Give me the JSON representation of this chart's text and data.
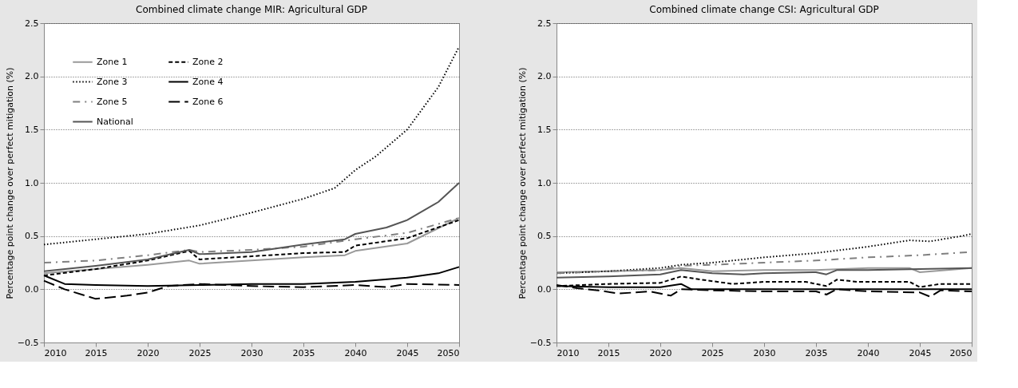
{
  "chart_data": [
    {
      "type": "line",
      "title": "Combined climate change MIR: Agricultural GDP",
      "ylabel": "Percentage point change over perfect mitigation (%)",
      "xlim": [
        2010,
        2050
      ],
      "ylim": [
        -0.5,
        2.5
      ],
      "xticks": [
        2010,
        2015,
        2020,
        2025,
        2030,
        2035,
        2040,
        2045,
        2050
      ],
      "yticks": [
        -0.5,
        {
          "value": 0,
          "label": "0.0"
        },
        0.5,
        {
          "value": 1,
          "label": "1.0"
        },
        1.5,
        {
          "value": 2,
          "label": "2.0"
        },
        2.5
      ],
      "grid": "y",
      "legend": "top left",
      "series": [
        {
          "name": "Zone 1",
          "color": "#999999",
          "line_style": "solid",
          "x": [
            2010,
            2015,
            2020,
            2024,
            2025,
            2030,
            2035,
            2039,
            2040,
            2045,
            2050
          ],
          "values": [
            0.15,
            0.19,
            0.23,
            0.27,
            0.24,
            0.27,
            0.3,
            0.32,
            0.36,
            0.43,
            0.67
          ]
        },
        {
          "name": "Zone 2",
          "color": "#000000",
          "line_style": "dashed",
          "x": [
            2010,
            2015,
            2020,
            2024,
            2025,
            2030,
            2035,
            2039,
            2040,
            2045,
            2050
          ],
          "values": [
            0.13,
            0.19,
            0.27,
            0.36,
            0.28,
            0.31,
            0.34,
            0.35,
            0.41,
            0.48,
            0.65
          ]
        },
        {
          "name": "Zone 3",
          "color": "#000000",
          "line_style": "dotted",
          "x": [
            2010,
            2015,
            2020,
            2025,
            2030,
            2035,
            2038,
            2040,
            2042,
            2045,
            2048,
            2050
          ],
          "values": [
            0.42,
            0.47,
            0.52,
            0.6,
            0.72,
            0.85,
            0.95,
            1.12,
            1.25,
            1.5,
            1.9,
            2.28
          ]
        },
        {
          "name": "Zone 4",
          "color": "#000000",
          "line_style": "solid",
          "x": [
            2010,
            2012,
            2015,
            2020,
            2025,
            2030,
            2035,
            2040,
            2045,
            2048,
            2050
          ],
          "values": [
            0.13,
            0.05,
            0.04,
            0.03,
            0.04,
            0.05,
            0.05,
            0.07,
            0.11,
            0.15,
            0.21
          ]
        },
        {
          "name": "Zone 5",
          "color": "#808080",
          "line_style": "dashdot",
          "x": [
            2010,
            2015,
            2020,
            2024,
            2025,
            2030,
            2035,
            2040,
            2045,
            2050
          ],
          "values": [
            0.25,
            0.27,
            0.32,
            0.37,
            0.35,
            0.37,
            0.4,
            0.47,
            0.53,
            0.67
          ]
        },
        {
          "name": "Zone 6",
          "color": "#000000",
          "line_style": "longdash",
          "x": [
            2010,
            2012,
            2015,
            2018,
            2020,
            2022,
            2025,
            2030,
            2035,
            2040,
            2043,
            2045,
            2050
          ],
          "values": [
            0.08,
            0.0,
            -0.09,
            -0.06,
            -0.03,
            0.03,
            0.05,
            0.03,
            0.02,
            0.04,
            0.02,
            0.05,
            0.04
          ]
        },
        {
          "name": "National",
          "color": "#555555",
          "line_style": "solid",
          "x": [
            2010,
            2015,
            2020,
            2024,
            2025,
            2030,
            2035,
            2039,
            2040,
            2043,
            2045,
            2048,
            2050
          ],
          "values": [
            0.17,
            0.22,
            0.28,
            0.37,
            0.33,
            0.35,
            0.42,
            0.47,
            0.52,
            0.58,
            0.65,
            0.82,
            1.0
          ]
        }
      ]
    },
    {
      "type": "line",
      "title": "Combined climate change CSI: Agricultural GDP",
      "ylabel": "Percentage point change over perfect mitigation (%)",
      "xlim": [
        2010,
        2050
      ],
      "ylim": [
        -0.5,
        2.5
      ],
      "xticks": [
        2010,
        2015,
        2020,
        2025,
        2030,
        2035,
        2040,
        2045,
        2050
      ],
      "yticks": [
        -0.5,
        {
          "value": 0,
          "label": "0.0"
        },
        0.5,
        {
          "value": 1,
          "label": "1.0"
        },
        1.5,
        {
          "value": 2,
          "label": "2.0"
        },
        2.5
      ],
      "grid": "y",
      "legend": "top left",
      "series": [
        {
          "name": "Zone 1",
          "color": "#999999",
          "line_style": "solid",
          "x": [
            2010,
            2020,
            2022,
            2025,
            2030,
            2035,
            2040,
            2044,
            2045,
            2050
          ],
          "values": [
            0.16,
            0.18,
            0.2,
            0.17,
            0.18,
            0.18,
            0.2,
            0.2,
            0.16,
            0.2
          ]
        },
        {
          "name": "Zone 2",
          "color": "#000000",
          "line_style": "dashed",
          "x": [
            2010,
            2015,
            2020,
            2022,
            2024,
            2027,
            2030,
            2034,
            2036,
            2037,
            2039,
            2044,
            2045,
            2047,
            2050
          ],
          "values": [
            0.03,
            0.05,
            0.06,
            0.12,
            0.09,
            0.05,
            0.07,
            0.07,
            0.03,
            0.09,
            0.07,
            0.07,
            0.02,
            0.05,
            0.05
          ]
        },
        {
          "name": "Zone 3",
          "color": "#000000",
          "line_style": "dotted",
          "x": [
            2010,
            2015,
            2020,
            2022,
            2025,
            2030,
            2035,
            2040,
            2044,
            2046,
            2049,
            2050
          ],
          "values": [
            0.15,
            0.17,
            0.2,
            0.23,
            0.25,
            0.3,
            0.34,
            0.4,
            0.46,
            0.45,
            0.5,
            0.52
          ]
        },
        {
          "name": "Zone 4",
          "color": "#000000",
          "line_style": "solid",
          "x": [
            2010,
            2015,
            2020,
            2022,
            2023,
            2030,
            2040,
            2050
          ],
          "values": [
            0.03,
            0.02,
            0.02,
            0.05,
            0.0,
            0.0,
            0.0,
            0.0
          ]
        },
        {
          "name": "Zone 5",
          "color": "#808080",
          "line_style": "dashdot",
          "x": [
            2010,
            2015,
            2020,
            2022,
            2025,
            2030,
            2035,
            2040,
            2045,
            2050
          ],
          "values": [
            0.15,
            0.17,
            0.18,
            0.22,
            0.23,
            0.25,
            0.27,
            0.3,
            0.32,
            0.35
          ]
        },
        {
          "name": "Zone 6",
          "color": "#000000",
          "line_style": "longdash",
          "x": [
            2010,
            2012,
            2014,
            2016,
            2019,
            2021,
            2022,
            2025,
            2030,
            2035,
            2036,
            2037,
            2040,
            2045,
            2046,
            2047,
            2050
          ],
          "values": [
            0.04,
            0.01,
            -0.01,
            -0.04,
            -0.02,
            -0.06,
            0.0,
            -0.01,
            -0.02,
            -0.02,
            -0.05,
            0.0,
            -0.02,
            -0.03,
            -0.07,
            -0.01,
            -0.02
          ]
        },
        {
          "name": "National",
          "color": "#555555",
          "line_style": "solid",
          "x": [
            2010,
            2015,
            2020,
            2022,
            2025,
            2028,
            2030,
            2035,
            2036,
            2037,
            2040,
            2045,
            2050
          ],
          "values": [
            0.11,
            0.12,
            0.14,
            0.18,
            0.15,
            0.14,
            0.15,
            0.16,
            0.14,
            0.18,
            0.18,
            0.19,
            0.2
          ]
        }
      ]
    }
  ]
}
